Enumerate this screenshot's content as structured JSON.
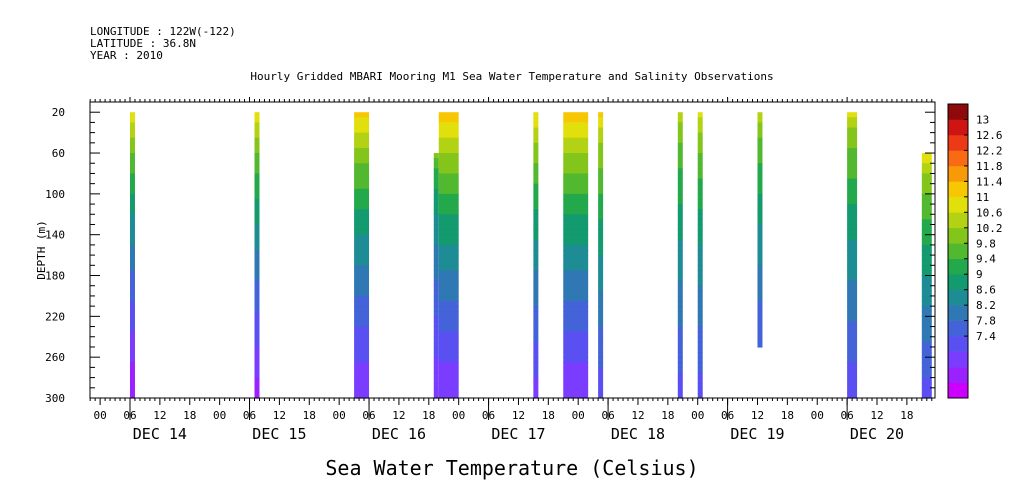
{
  "header": {
    "longitude": "LONGITUDE : 122W(-122)",
    "latitude": "LATITUDE : 36.8N",
    "year": "YEAR : 2010"
  },
  "chart_data": {
    "type": "heatmap",
    "title": "Hourly Gridded MBARI Mooring M1 Sea Water Temperature and Salinity Observations",
    "xlabel": "Sea Water Temperature (Celsius)",
    "ylabel": "DEPTH (m)",
    "units": "Celsius",
    "x_range_hours": [
      -9,
      165
    ],
    "ylim": [
      300,
      10
    ],
    "y_ticks": [
      20,
      60,
      100,
      140,
      180,
      220,
      260,
      300
    ],
    "x_hour_labels": [
      "00",
      "06",
      "12",
      "18",
      "00",
      "06",
      "12",
      "18",
      "00",
      "06",
      "12",
      "18",
      "00",
      "06",
      "12",
      "18",
      "00",
      "06",
      "12",
      "18",
      "00",
      "06",
      "12",
      "18",
      "00",
      "06",
      "12",
      "18"
    ],
    "x_hour_label_positions_hours": [
      -6,
      0,
      6,
      12,
      18,
      24,
      30,
      36,
      42,
      48,
      54,
      60,
      66,
      72,
      78,
      84,
      90,
      96,
      102,
      108,
      114,
      120,
      126,
      132,
      138,
      144,
      150,
      156
    ],
    "day_labels": [
      "DEC 14",
      "DEC 15",
      "DEC 16",
      "DEC 17",
      "DEC 18",
      "DEC 19",
      "DEC 20"
    ],
    "day_label_centers_hours": [
      6,
      30,
      54,
      78,
      102,
      126,
      150
    ],
    "colorbar": {
      "levels": [
        7.4,
        7.8,
        8.2,
        8.6,
        9,
        9.4,
        9.8,
        10.2,
        10.6,
        11,
        11.4,
        11.8,
        12.2,
        12.6,
        13
      ],
      "labels": [
        "13",
        "12.6",
        "12.2",
        "11.8",
        "11.4",
        "11",
        "10.6",
        "10.2",
        "9.8",
        "9.4",
        "9",
        "8.6",
        "8.2",
        "7.8",
        "7.4"
      ],
      "colors": [
        "#cc00ff",
        "#9a22ff",
        "#7a3cff",
        "#5a50f2",
        "#4463d8",
        "#2f78b4",
        "#1e8c94",
        "#139a6e",
        "#23a94c",
        "#52b82f",
        "#84c51c",
        "#b4d214",
        "#e2e00c",
        "#f8c704",
        "#f89a08",
        "#f86a14",
        "#ec3a16",
        "#cf1414",
        "#8e0a0a"
      ]
    },
    "segments": [
      {
        "start_hour": 0,
        "end_hour": 1,
        "depth_top": 20,
        "depth_bottom": 300,
        "temp_top": 12.4,
        "temp_bottom": 7.4
      },
      {
        "start_hour": 25,
        "end_hour": 26,
        "depth_top": 20,
        "depth_bottom": 300,
        "temp_top": 12.4,
        "temp_bottom": 7.6
      },
      {
        "start_hour": 45,
        "end_hour": 48,
        "depth_top": 20,
        "depth_bottom": 300,
        "temp_top": 12.6,
        "temp_bottom": 7.8
      },
      {
        "start_hour": 61,
        "end_hour": 62,
        "depth_top": 60,
        "depth_bottom": 300,
        "temp_top": 11.2,
        "temp_bottom": 7.8
      },
      {
        "start_hour": 62,
        "end_hour": 66,
        "depth_top": 20,
        "depth_bottom": 300,
        "temp_top": 12.8,
        "temp_bottom": 7.8
      },
      {
        "start_hour": 81,
        "end_hour": 82,
        "depth_top": 20,
        "depth_bottom": 300,
        "temp_top": 12.4,
        "temp_bottom": 8.0
      },
      {
        "start_hour": 87,
        "end_hour": 92,
        "depth_top": 20,
        "depth_bottom": 300,
        "temp_top": 12.8,
        "temp_bottom": 7.8
      },
      {
        "start_hour": 94,
        "end_hour": 95,
        "depth_top": 20,
        "depth_bottom": 300,
        "temp_top": 12.4,
        "temp_bottom": 8.3
      },
      {
        "start_hour": 110,
        "end_hour": 111,
        "depth_top": 20,
        "depth_bottom": 300,
        "temp_top": 11.8,
        "temp_bottom": 8.4
      },
      {
        "start_hour": 114,
        "end_hour": 115,
        "depth_top": 20,
        "depth_bottom": 300,
        "temp_top": 12.0,
        "temp_bottom": 8.4
      },
      {
        "start_hour": 126,
        "end_hour": 127,
        "depth_top": 20,
        "depth_bottom": 250,
        "temp_top": 11.8,
        "temp_bottom": 8.6
      },
      {
        "start_hour": 144,
        "end_hour": 146,
        "depth_top": 20,
        "depth_bottom": 300,
        "temp_top": 12.0,
        "temp_bottom": 8.3
      },
      {
        "start_hour": 159,
        "end_hour": 161,
        "depth_top": 60,
        "depth_bottom": 300,
        "temp_top": 12.2,
        "temp_bottom": 8.4
      }
    ]
  }
}
